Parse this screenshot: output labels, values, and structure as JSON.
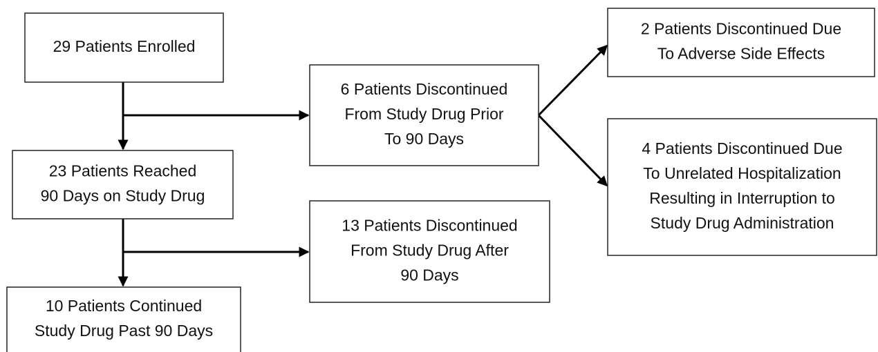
{
  "nodes": [
    {
      "lines": [
        "29 Patients Enrolled"
      ]
    },
    {
      "lines": [
        "6 Patients Discontinued",
        "From Study Drug Prior",
        "To 90 Days"
      ]
    },
    {
      "lines": [
        "23 Patients Reached",
        "90 Days on Study Drug"
      ]
    },
    {
      "lines": [
        "13 Patients Discontinued",
        "From Study Drug After",
        "90 Days"
      ]
    },
    {
      "lines": [
        "10 Patients Continued",
        "Study Drug Past 90 Days"
      ]
    },
    {
      "lines": [
        "2 Patients Discontinued Due",
        "To Adverse Side Effects"
      ]
    },
    {
      "lines": [
        "4 Patients Discontinued Due",
        "To Unrelated Hospitalization",
        "Resulting in Interruption to",
        "Study Drug Administration"
      ]
    }
  ]
}
